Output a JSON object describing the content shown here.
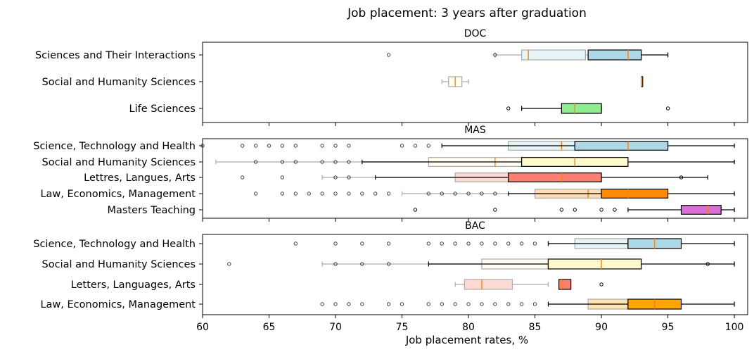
{
  "title": "Job placement: 3 years after graduation",
  "xlabel": "Job placement rates, %",
  "xlim": [
    60,
    101
  ],
  "xticks": [
    60,
    65,
    70,
    75,
    80,
    85,
    90,
    95,
    100
  ],
  "colors": {
    "median": "#ff7f0e",
    "box_edge": "#000000",
    "faded_edge": "#aaaaaa"
  },
  "chart_data": [
    {
      "type": "box",
      "title": "DOC",
      "categories": [
        "Sciences and Their Interactions",
        "Social and Humanity Sciences",
        "Life Sciences"
      ],
      "groups": [
        {
          "category": "Sciences and Their Interactions",
          "color": "#add8e6",
          "faded": {
            "wlo": 82,
            "q1": 84,
            "med": 84.5,
            "q3": 88.8,
            "whi": 89,
            "fliers": [
              74,
              82
            ]
          },
          "main": {
            "wlo": 89,
            "q1": 89,
            "med": 92,
            "q3": 93,
            "whi": 95,
            "fliers": []
          }
        },
        {
          "category": "Social and Humanity Sciences",
          "color": "#fffacd",
          "faded": {
            "wlo": 78,
            "q1": 78.5,
            "med": 79,
            "q3": 79.5,
            "whi": 80,
            "fliers": []
          },
          "main": {
            "wlo": 93,
            "q1": 93,
            "med": 93,
            "q3": 93,
            "whi": 93,
            "fliers": []
          }
        },
        {
          "category": "Life Sciences",
          "color": "#90ee90",
          "main": {
            "wlo": 84,
            "q1": 87,
            "med": 88,
            "q3": 90,
            "whi": 90,
            "fliers": [
              83,
              95
            ]
          }
        }
      ]
    },
    {
      "type": "box",
      "title": "MAS",
      "categories": [
        "Science, Technology and Health",
        "Social and Humanity Sciences",
        "Lettres, Langues, Arts",
        "Law, Economics, Management",
        "Masters Teaching"
      ],
      "groups": [
        {
          "category": "Science, Technology and Health",
          "color": "#add8e6",
          "faded": {
            "wlo": 78,
            "q1": 83,
            "med": 87,
            "q3": 88,
            "whi": 88,
            "fliers": [
              60,
              63,
              64,
              65,
              66,
              67,
              69,
              70,
              71,
              75,
              76,
              77
            ]
          },
          "main": {
            "wlo": 78,
            "q1": 88,
            "med": 92,
            "q3": 95,
            "whi": 100,
            "fliers": []
          }
        },
        {
          "category": "Social and Humanity Sciences",
          "color": "#fffacd",
          "faded": {
            "wlo": 61,
            "q1": 77,
            "med": 82,
            "q3": 84,
            "whi": 84,
            "fliers": [
              64,
              66,
              67,
              69,
              70,
              71
            ]
          },
          "main": {
            "wlo": 72,
            "q1": 84,
            "med": 88,
            "q3": 92,
            "whi": 100,
            "fliers": []
          }
        },
        {
          "category": "Lettres, Langues, Arts",
          "color": "#fa8072",
          "faded": {
            "wlo": 69,
            "q1": 79,
            "med": 83,
            "q3": 83,
            "whi": 83,
            "fliers": [
              63,
              66,
              70,
              71
            ]
          },
          "main": {
            "wlo": 73,
            "q1": 83,
            "med": 87,
            "q3": 90,
            "whi": 98,
            "fliers": [
              96
            ]
          }
        },
        {
          "category": "Law, Economics, Management",
          "color": "#ff8c00",
          "faded": {
            "wlo": 75,
            "q1": 85,
            "med": 89,
            "q3": 90,
            "whi": 90,
            "fliers": [
              64,
              66,
              67,
              68,
              69,
              70,
              71,
              72,
              73,
              74,
              77,
              78,
              79,
              80,
              81,
              82
            ]
          },
          "main": {
            "wlo": 83,
            "q1": 90,
            "med": 92,
            "q3": 95,
            "whi": 100,
            "fliers": []
          }
        },
        {
          "category": "Masters Teaching",
          "color": "#da70d6",
          "main": {
            "wlo": 92,
            "q1": 96,
            "med": 98,
            "q3": 99,
            "whi": 100,
            "fliers": [
              76,
              82,
              87,
              88,
              90,
              91
            ]
          }
        }
      ]
    },
    {
      "type": "box",
      "title": "BAC",
      "categories": [
        "Science, Technology and Health",
        "Social and Humanity Sciences",
        "Letters, Languages, Arts",
        "Law, Economics, Management"
      ],
      "groups": [
        {
          "category": "Science, Technology and Health",
          "color": "#add8e6",
          "faded": {
            "wlo": 86,
            "q1": 88,
            "med": 92,
            "q3": 92,
            "whi": 92,
            "fliers": [
              67,
              70,
              72,
              74,
              77,
              78,
              79,
              80,
              81,
              82,
              83,
              84,
              85
            ]
          },
          "main": {
            "wlo": 86,
            "q1": 92,
            "med": 94,
            "q3": 96,
            "whi": 100,
            "fliers": []
          }
        },
        {
          "category": "Social and Humanity Sciences",
          "color": "#fffacd",
          "faded": {
            "wlo": 69,
            "q1": 81,
            "med": 86,
            "q3": 86,
            "whi": 86,
            "fliers": [
              62,
              70,
              72,
              74
            ]
          },
          "main": {
            "wlo": 77,
            "q1": 86,
            "med": 90,
            "q3": 93,
            "whi": 100,
            "fliers": [
              98
            ]
          }
        },
        {
          "category": "Letters, Languages, Arts",
          "color": "#fa8072",
          "faded": {
            "wlo": 79,
            "q1": 79.7,
            "med": 81,
            "q3": 83.3,
            "whi": 86,
            "fliers": []
          },
          "main": {
            "wlo": 86.8,
            "q1": 86.8,
            "med": 87,
            "q3": 87.7,
            "whi": 87.7,
            "fliers": [
              90
            ]
          }
        },
        {
          "category": "Law, Economics, Management",
          "color": "#ffa500",
          "faded": {
            "wlo": 86,
            "q1": 89,
            "med": 92,
            "q3": 92,
            "whi": 92,
            "fliers": [
              69,
              70,
              71,
              72,
              74,
              75,
              77,
              78,
              79,
              80,
              81,
              82,
              83,
              84,
              85
            ]
          },
          "main": {
            "wlo": 86,
            "q1": 92,
            "med": 94,
            "q3": 96,
            "whi": 100,
            "fliers": []
          }
        }
      ]
    }
  ]
}
